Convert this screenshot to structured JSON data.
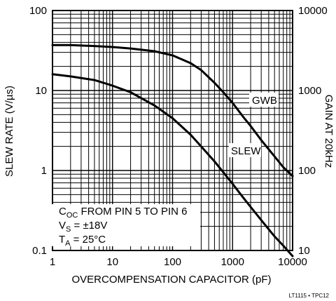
{
  "chart_data": {
    "type": "line",
    "x_scale": "log",
    "y_scale": "log",
    "xlim": [
      1,
      10000
    ],
    "ylim": [
      0.1,
      100
    ],
    "y2lim": [
      10,
      10000
    ],
    "xlabel": "OVERCOMPENSATION CAPACITOR (pF)",
    "ylabel": "SLEW RATE (V/µs)",
    "y2label": "GAIN AT 20kHz",
    "x_ticks": [
      "1",
      "10",
      "100",
      "1000",
      "10000"
    ],
    "y_ticks": [
      "0.1",
      "1",
      "10",
      "100"
    ],
    "y2_ticks": [
      "10",
      "100",
      "1000",
      "10000"
    ],
    "grid": true,
    "series": [
      {
        "name": "GWB",
        "x": [
          1,
          2,
          5,
          10,
          20,
          50,
          100,
          200,
          300,
          500,
          700,
          1000,
          1500,
          2000,
          3000,
          5000,
          7000,
          10000
        ],
        "y": [
          37,
          37,
          36,
          35,
          33.5,
          31,
          27.5,
          22,
          18,
          12.5,
          9.5,
          7,
          4.7,
          3.6,
          2.4,
          1.5,
          1.1,
          0.85
        ]
      },
      {
        "name": "SLEW",
        "x": [
          1,
          2,
          5,
          10,
          20,
          50,
          100,
          200,
          300,
          500,
          700,
          1000,
          1500,
          2000,
          3000,
          5000,
          7000,
          10000
        ],
        "y": [
          16,
          15,
          13.5,
          11.5,
          9.5,
          6.5,
          4.5,
          2.8,
          2.0,
          1.3,
          0.95,
          0.68,
          0.46,
          0.35,
          0.24,
          0.15,
          0.115,
          0.085
        ]
      }
    ]
  },
  "legend": {
    "line1_main": "C",
    "line1_sub": "OC",
    "line1_rest": " FROM PIN 5 TO PIN 6",
    "line2_main": "V",
    "line2_sub": "S",
    "line2_rest": " = ±18V",
    "line3_main": "T",
    "line3_sub": "A",
    "line3_rest": " = 25°C"
  },
  "footnote": "LT1115 • TPC12"
}
